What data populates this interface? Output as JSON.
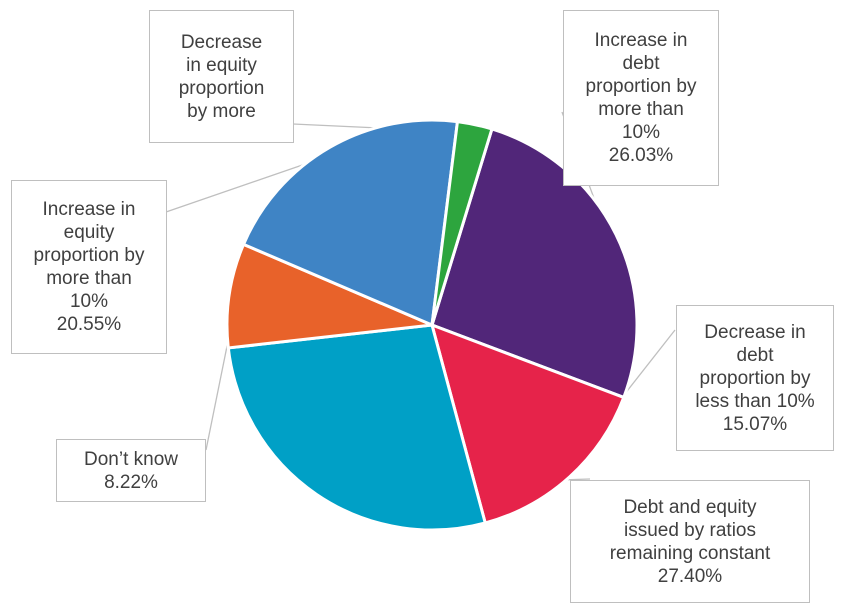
{
  "chart_data": {
    "type": "pie",
    "colors": {
      "segment_0": "#512679",
      "segment_1": "#e6234a",
      "segment_2": "#00a0c6",
      "segment_3": "#e8622a",
      "segment_4": "#3f84c5",
      "segment_5": "#2da53e",
      "leader_line": "#bfbfbf",
      "slice_border": "#ffffff"
    },
    "slices": [
      {
        "lines": [
          "Increase in",
          "debt",
          "proportion by",
          "more than",
          "10%"
        ],
        "value_label": "26.03%",
        "value": 26.03
      },
      {
        "lines": [
          "Decrease in",
          "debt",
          "proportion by",
          "less than 10%"
        ],
        "value_label": "15.07%",
        "value": 15.07
      },
      {
        "lines": [
          "Debt and equity",
          "issued by ratios",
          "remaining constant"
        ],
        "value_label": "27.40%",
        "value": 27.4
      },
      {
        "lines": [
          "Don’t know"
        ],
        "value_label": "8.22%",
        "value": 8.22
      },
      {
        "lines": [
          "Increase in",
          "equity",
          "proportion by",
          "more than",
          "10%"
        ],
        "value_label": "20.55%",
        "value": 20.55
      },
      {
        "lines": [
          "Decrease",
          "in equity",
          "proportion",
          "by more"
        ],
        "value_label": "",
        "value": 2.74
      }
    ]
  }
}
